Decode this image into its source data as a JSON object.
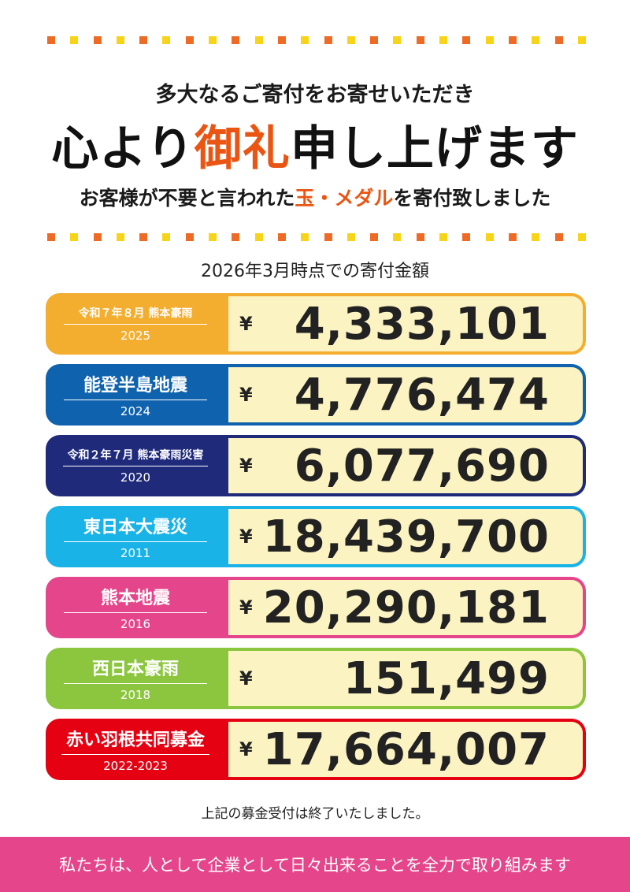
{
  "subtitle": "多大なるご寄付をお寄せいただき",
  "headline": {
    "before": "心より",
    "highlight": "御礼",
    "after": "申し上げます"
  },
  "tagline": {
    "before": "お客様が不要と言われた",
    "highlight": "玉・メダル",
    "after": "を寄付致しました"
  },
  "as_of": "2026年3月時点での寄付金額",
  "currency": "¥",
  "donations": [
    {
      "name": "令和７年８月 熊本豪雨",
      "year": "2025",
      "amount": "4,333,101",
      "color": "#f4ae2f"
    },
    {
      "name": "能登半島地震",
      "year": "2024",
      "amount": "4,776,474",
      "color": "#0f62ad"
    },
    {
      "name": "令和２年７月 熊本豪雨災害",
      "year": "2020",
      "amount": "6,077,690",
      "color": "#1f2a7a"
    },
    {
      "name": "東日本大震災",
      "year": "2011",
      "amount": "18,439,700",
      "color": "#1ab3e8"
    },
    {
      "name": "熊本地震",
      "year": "2016",
      "amount": "20,290,181",
      "color": "#e5468b"
    },
    {
      "name": "西日本豪雨",
      "year": "2018",
      "amount": "151,499",
      "color": "#8cc63f"
    },
    {
      "name": "赤い羽根共同募金",
      "year": "2022-2023",
      "amount": "17,664,007",
      "color": "#e50012"
    }
  ],
  "closed_note": "上記の募金受付は終了いたしました。",
  "footer": "私たちは、人として企業として日々出来ることを全力で取り組みます",
  "colors": {
    "accent": "#ea5514",
    "dot_orange": "#ee6b25",
    "dot_yellow": "#f7d417",
    "footer": "#e5468b",
    "amount_bg": "#fbf3c1"
  }
}
